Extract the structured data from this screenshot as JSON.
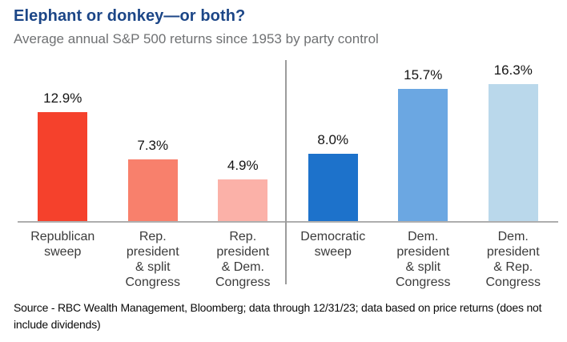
{
  "header": {
    "title": "Elephant or donkey—or both?",
    "subtitle": "Average annual S&P 500 returns since 1953 by party control"
  },
  "chart_data": {
    "type": "bar",
    "title": "Elephant or donkey—or both?",
    "subtitle": "Average annual S&P 500 returns since 1953 by party control",
    "categories": [
      "Republican sweep",
      "Rep. president & split Congress",
      "Rep. president & Dem. Congress",
      "Democratic sweep",
      "Dem. president & split Congress",
      "Dem. president & Rep. Congress"
    ],
    "category_lines": [
      [
        "Republican",
        "sweep"
      ],
      [
        "Rep.",
        "president",
        "& split",
        "Congress"
      ],
      [
        "Rep.",
        "president",
        "& Dem.",
        "Congress"
      ],
      [
        "Democratic",
        "sweep"
      ],
      [
        "Dem.",
        "president",
        "& split",
        "Congress"
      ],
      [
        "Dem.",
        "president",
        "& Rep.",
        "Congress"
      ]
    ],
    "values": [
      12.9,
      7.3,
      4.9,
      8.0,
      15.7,
      16.3
    ],
    "value_labels": [
      "12.9%",
      "7.3%",
      "4.9%",
      "8.0%",
      "15.7%",
      "16.3%"
    ],
    "bar_colors": [
      "#f5412c",
      "#f8806c",
      "#fbb1a8",
      "#1d72cb",
      "#6ba7e2",
      "#bad8eb"
    ],
    "groups": [
      "Republican",
      "Republican",
      "Republican",
      "Democratic",
      "Democratic",
      "Democratic"
    ],
    "group_divider_after_index": 2,
    "xlabel": "",
    "ylabel": "",
    "ylim": [
      0,
      19.3
    ],
    "grid": false,
    "legend_position": "none"
  },
  "footer": {
    "source_lines": [
      "Source - RBC Wealth Management, Bloomberg; data through 12/31/23; data based on price returns (does not",
      "include dividends)"
    ]
  },
  "colors": {
    "title": "#1c4687",
    "subtitle": "#6f7173",
    "axis_line": "#aeaeae",
    "divider_line": "#9c9c9c",
    "value_label": "#141414",
    "category_label": "#3b3b3b"
  }
}
